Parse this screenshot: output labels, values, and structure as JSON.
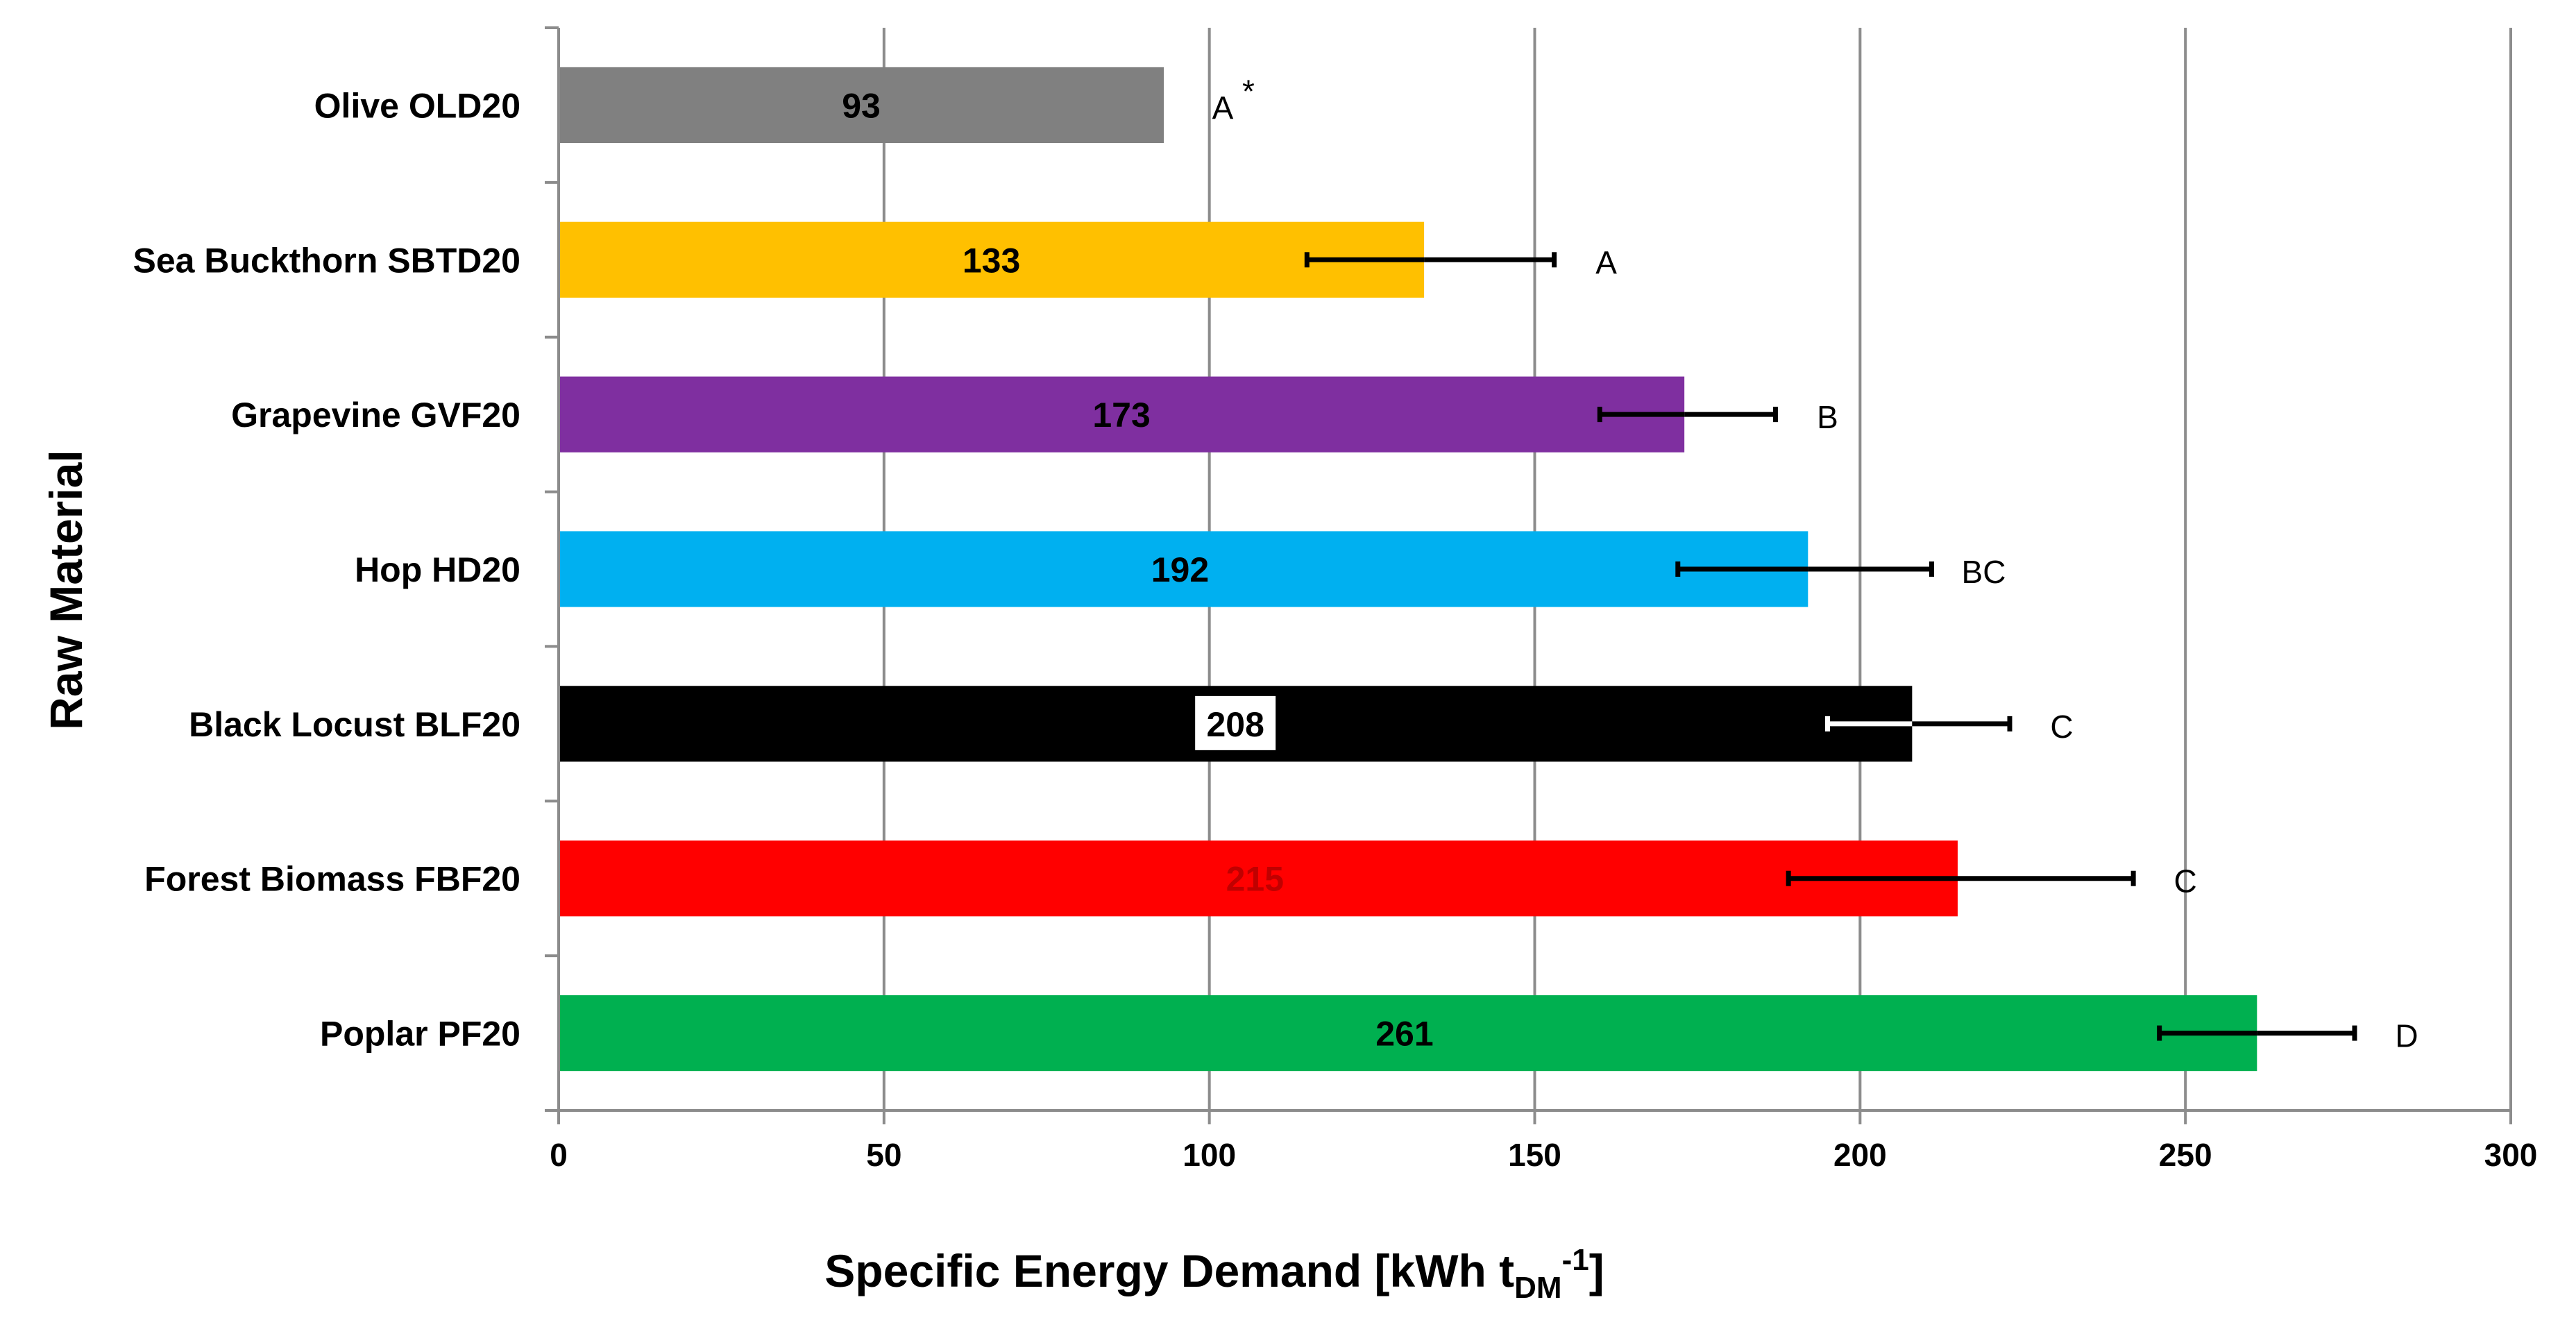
{
  "chart_data": {
    "type": "bar",
    "orientation": "horizontal",
    "title": "",
    "xlabel": "Specific Energy Demand [kWh t",
    "xlabel_subscript": "DM",
    "xlabel_superscript": "-1",
    "xlabel_close": "]",
    "ylabel": "Raw Material",
    "xlim": [
      0,
      300
    ],
    "xticks": [
      0,
      50,
      100,
      150,
      200,
      250,
      300
    ],
    "grid": "vertical",
    "categories": [
      "Olive OLD20",
      "Sea Buckthorn SBTD20",
      "Grapevine GVF20",
      "Hop HD20",
      "Black Locust BLF20",
      "Forest Biomass FBF20",
      "Poplar PF20"
    ],
    "values": [
      93,
      133,
      173,
      192,
      208,
      215,
      261
    ],
    "value_labels": [
      "93",
      "133",
      "173",
      "192",
      "208",
      "215",
      "261"
    ],
    "error_low": [
      null,
      115,
      160,
      172,
      195,
      189,
      246
    ],
    "error_high": [
      null,
      153,
      187,
      211,
      223,
      242,
      276
    ],
    "significance": [
      "A",
      "A",
      "B",
      "BC",
      "C",
      "C",
      "D"
    ],
    "significance_superscript": [
      "*",
      "",
      "",
      "",
      "",
      "",
      ""
    ],
    "colors": [
      "#808080",
      "#FFC000",
      "#7F2FA0",
      "#00B0F0",
      "#000000",
      "#FF0000",
      "#00B050"
    ],
    "value_label_colors": [
      "#000000",
      "#000000",
      "#000000",
      "#000000",
      "#000000",
      "#C00000",
      "#000000"
    ],
    "value_label_boxed": [
      false,
      false,
      false,
      false,
      true,
      false,
      false
    ],
    "error_bar_colors": [
      "#000000",
      "#000000",
      "#000000",
      "#000000",
      "#000000",
      "#000000",
      "#000000"
    ],
    "error_bar_low_colors": [
      "#000000",
      "#000000",
      "#000000",
      "#000000",
      "#FFFFFF",
      "#000000",
      "#000000"
    ]
  }
}
